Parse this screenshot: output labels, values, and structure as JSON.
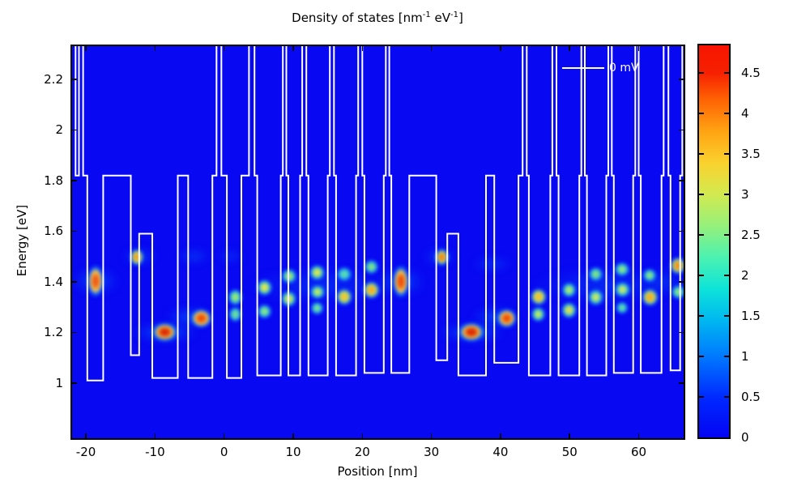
{
  "title": {
    "base": "Density of states [nm",
    "sup1": "-1",
    "mid": " eV",
    "sup2": "-1",
    "end": "]",
    "full": "Density of states [nm^-1 eV^-1]"
  },
  "legend": {
    "label": "0 mV",
    "line_color": "#ffffff"
  },
  "axes": {
    "x": {
      "label": "Position [nm]",
      "tick_labels": [
        "-20",
        "-10",
        "0",
        "10",
        "20",
        "30",
        "40",
        "50",
        "60"
      ],
      "tick_values": [
        -20,
        -10,
        0,
        10,
        20,
        30,
        40,
        50,
        60
      ]
    },
    "y": {
      "label": "Energy [eV]",
      "tick_labels": [
        "1",
        "1.2",
        "1.4",
        "1.6",
        "1.8",
        "2",
        "2.2"
      ],
      "tick_values": [
        1,
        1.2,
        1.4,
        1.6,
        1.8,
        2,
        2.2
      ]
    }
  },
  "colorbar": {
    "min": 0,
    "max": 4.84,
    "tick_labels": [
      "0",
      "0.5",
      "1",
      "1.5",
      "2",
      "2.5",
      "3",
      "3.5",
      "4",
      "4.5"
    ],
    "tick_values": [
      0,
      0.5,
      1,
      1.5,
      2,
      2.5,
      3,
      3.5,
      4,
      4.5
    ],
    "gradient": [
      [
        0,
        "#0404f2"
      ],
      [
        0.1,
        "#0028ff"
      ],
      [
        0.2,
        "#0074ff"
      ],
      [
        0.3,
        "#00b8f0"
      ],
      [
        0.38,
        "#0ee4d8"
      ],
      [
        0.46,
        "#4cf2b0"
      ],
      [
        0.54,
        "#96f07a"
      ],
      [
        0.62,
        "#d2ea50"
      ],
      [
        0.7,
        "#fad22e"
      ],
      [
        0.78,
        "#ffa413"
      ],
      [
        0.86,
        "#ff6404"
      ],
      [
        0.93,
        "#f62000"
      ],
      [
        1,
        "#f81400"
      ]
    ]
  },
  "colors": {
    "plot_bg": "#0808f2",
    "band_line": "#ffffff",
    "frame": "#000000"
  },
  "chart_data": {
    "type": "heatmap",
    "title": "Density of states [nm^-1 eV^-1]",
    "xlabel": "Position [nm]",
    "ylabel": "Energy [eV]",
    "xlim": [
      -22.0,
      66.5
    ],
    "ylim": [
      0.782,
      2.331
    ],
    "value_range": [
      0,
      4.84
    ],
    "series": [
      {
        "name": "0 mV",
        "role": "conduction-band-profile",
        "step_points": [
          [
            -22.0,
            2.36
          ],
          [
            -21.5,
            1.82
          ],
          [
            -21.0,
            2.36
          ],
          [
            -20.4,
            1.82
          ],
          [
            -19.8,
            1.01
          ],
          [
            -17.5,
            1.82
          ],
          [
            -13.5,
            1.11
          ],
          [
            -12.3,
            1.59
          ],
          [
            -10.4,
            1.02
          ],
          [
            -6.7,
            1.82
          ],
          [
            -5.2,
            1.02
          ],
          [
            -1.7,
            1.82
          ],
          [
            -1.1,
            2.36
          ],
          [
            -0.4,
            1.82
          ],
          [
            0.4,
            1.02
          ],
          [
            2.5,
            1.82
          ],
          [
            3.6,
            2.36
          ],
          [
            4.4,
            1.82
          ],
          [
            4.8,
            1.03
          ],
          [
            8.2,
            1.82
          ],
          [
            8.5,
            2.36
          ],
          [
            9.0,
            1.82
          ],
          [
            9.3,
            1.03
          ],
          [
            11.0,
            1.82
          ],
          [
            11.3,
            2.36
          ],
          [
            11.9,
            1.82
          ],
          [
            12.2,
            1.03
          ],
          [
            15.0,
            1.82
          ],
          [
            15.3,
            2.36
          ],
          [
            15.9,
            1.82
          ],
          [
            16.2,
            1.03
          ],
          [
            19.1,
            1.82
          ],
          [
            19.4,
            2.36
          ],
          [
            20.0,
            1.82
          ],
          [
            20.3,
            1.04
          ],
          [
            23.1,
            1.82
          ],
          [
            23.4,
            2.36
          ],
          [
            23.9,
            1.82
          ],
          [
            24.2,
            1.04
          ],
          [
            26.8,
            1.82
          ],
          [
            30.7,
            1.09
          ],
          [
            32.3,
            1.59
          ],
          [
            33.9,
            1.03
          ],
          [
            37.9,
            1.82
          ],
          [
            39.1,
            1.08
          ],
          [
            42.6,
            1.82
          ],
          [
            43.2,
            2.36
          ],
          [
            43.8,
            1.82
          ],
          [
            44.1,
            1.03
          ],
          [
            47.2,
            1.82
          ],
          [
            47.5,
            2.36
          ],
          [
            48.1,
            1.82
          ],
          [
            48.4,
            1.03
          ],
          [
            51.4,
            1.82
          ],
          [
            51.7,
            2.36
          ],
          [
            52.2,
            1.82
          ],
          [
            52.5,
            1.03
          ],
          [
            55.3,
            1.82
          ],
          [
            55.6,
            2.36
          ],
          [
            56.1,
            1.82
          ],
          [
            56.4,
            1.04
          ],
          [
            59.2,
            1.82
          ],
          [
            59.5,
            2.36
          ],
          [
            60.0,
            1.82
          ],
          [
            60.3,
            1.04
          ],
          [
            63.3,
            1.82
          ],
          [
            63.6,
            2.36
          ],
          [
            64.3,
            1.82
          ],
          [
            64.6,
            1.05
          ],
          [
            66.0,
            1.82
          ],
          [
            66.3,
            2.36
          ]
        ]
      }
    ],
    "states": [
      {
        "x": -18.6,
        "E": 1.403,
        "w": 2.7,
        "h": 0.15,
        "core": "#ef5a18",
        "mid": "#ffd24b"
      },
      {
        "x": -12.6,
        "E": 1.496,
        "w": 2.3,
        "h": 0.08,
        "core": "#f5a01e",
        "mid": "#c8e860"
      },
      {
        "x": -8.6,
        "E": 1.201,
        "w": 4.4,
        "h": 0.09,
        "core": "#dd2b06",
        "mid": "#ffc83c"
      },
      {
        "x": -3.3,
        "E": 1.256,
        "w": 3.6,
        "h": 0.088,
        "core": "#ee4f08",
        "mid": "#ffd24b"
      },
      {
        "x": 1.6,
        "E": 1.339,
        "w": 2.5,
        "h": 0.075,
        "core": "#9ce86e",
        "mid": "#3cd4cc"
      },
      {
        "x": 1.6,
        "E": 1.272,
        "w": 2.3,
        "h": 0.068,
        "core": "#74dc96",
        "mid": "#34ccd4"
      },
      {
        "x": 5.8,
        "E": 1.378,
        "w": 2.7,
        "h": 0.078,
        "core": "#e6e44b",
        "mid": "#55dcb4"
      },
      {
        "x": 5.8,
        "E": 1.282,
        "w": 2.5,
        "h": 0.068,
        "core": "#8ce682",
        "mid": "#34ccd4"
      },
      {
        "x": 9.4,
        "E": 1.421,
        "w": 2.5,
        "h": 0.07,
        "core": "#aae866",
        "mid": "#3cd4cc"
      },
      {
        "x": 9.4,
        "E": 1.333,
        "w": 2.7,
        "h": 0.075,
        "core": "#dce64b",
        "mid": "#48d8c0"
      },
      {
        "x": 13.5,
        "E": 1.436,
        "w": 2.7,
        "h": 0.075,
        "core": "#e0e44b",
        "mid": "#48d8c0"
      },
      {
        "x": 13.5,
        "E": 1.36,
        "w": 2.5,
        "h": 0.068,
        "core": "#c4e85a",
        "mid": "#3cd4cc"
      },
      {
        "x": 13.5,
        "E": 1.295,
        "w": 2.2,
        "h": 0.06,
        "core": "#7ce09a",
        "mid": "#30c8d8"
      },
      {
        "x": 17.4,
        "E": 1.43,
        "w": 2.5,
        "h": 0.068,
        "core": "#5fdcae",
        "mid": "#28c0e0"
      },
      {
        "x": 17.4,
        "E": 1.339,
        "w": 2.8,
        "h": 0.08,
        "core": "#f5c52d",
        "mid": "#a0e878"
      },
      {
        "x": 21.3,
        "E": 1.46,
        "w": 2.5,
        "h": 0.068,
        "core": "#84e282",
        "mid": "#30c8d8"
      },
      {
        "x": 21.3,
        "E": 1.368,
        "w": 2.9,
        "h": 0.082,
        "core": "#f9ad22",
        "mid": "#b4e86e"
      },
      {
        "x": 25.6,
        "E": 1.401,
        "w": 2.9,
        "h": 0.148,
        "core": "#ef4d0a",
        "mid": "#ffd24b"
      },
      {
        "x": 31.5,
        "E": 1.496,
        "w": 2.5,
        "h": 0.08,
        "core": "#f58414",
        "mid": "#cce85f"
      },
      {
        "x": 35.8,
        "E": 1.201,
        "w": 4.4,
        "h": 0.09,
        "core": "#dd2b06",
        "mid": "#ffc83c"
      },
      {
        "x": 40.9,
        "E": 1.256,
        "w": 3.4,
        "h": 0.088,
        "core": "#ee4f08",
        "mid": "#ffd24b"
      },
      {
        "x": 45.5,
        "E": 1.339,
        "w": 2.8,
        "h": 0.08,
        "core": "#f5c02d",
        "mid": "#b4e86e"
      },
      {
        "x": 45.5,
        "E": 1.272,
        "w": 2.5,
        "h": 0.068,
        "core": "#c4e85a",
        "mid": "#3cd4cc"
      },
      {
        "x": 49.9,
        "E": 1.368,
        "w": 2.5,
        "h": 0.072,
        "core": "#b4e866",
        "mid": "#3cd4cc"
      },
      {
        "x": 49.9,
        "E": 1.288,
        "w": 2.7,
        "h": 0.075,
        "core": "#e4de4b",
        "mid": "#50d8bc"
      },
      {
        "x": 53.8,
        "E": 1.43,
        "w": 2.5,
        "h": 0.068,
        "core": "#84e282",
        "mid": "#30c8d8"
      },
      {
        "x": 53.8,
        "E": 1.339,
        "w": 2.7,
        "h": 0.075,
        "core": "#cce85f",
        "mid": "#3cd4cc"
      },
      {
        "x": 57.6,
        "E": 1.45,
        "w": 2.5,
        "h": 0.068,
        "core": "#8ee67e",
        "mid": "#30c8d8"
      },
      {
        "x": 57.6,
        "E": 1.368,
        "w": 2.7,
        "h": 0.073,
        "core": "#cce85f",
        "mid": "#3cd4cc"
      },
      {
        "x": 57.6,
        "E": 1.298,
        "w": 2.1,
        "h": 0.058,
        "core": "#6adca4",
        "mid": "#28c0e0"
      },
      {
        "x": 61.6,
        "E": 1.339,
        "w": 2.9,
        "h": 0.082,
        "core": "#f5ad22",
        "mid": "#b4e86e"
      },
      {
        "x": 61.6,
        "E": 1.425,
        "w": 2.3,
        "h": 0.062,
        "core": "#8ee67e",
        "mid": "#30c8d8"
      },
      {
        "x": 65.7,
        "E": 1.464,
        "w": 2.8,
        "h": 0.082,
        "core": "#f58c1a",
        "mid": "#c0e862"
      },
      {
        "x": 65.7,
        "E": 1.36,
        "w": 2.5,
        "h": 0.068,
        "core": "#8ee67e",
        "mid": "#30c8d8"
      }
    ],
    "haloes": [
      {
        "x": -18.6,
        "E": 1.403,
        "w": 7.0,
        "h": 0.11,
        "a": 0.35
      },
      {
        "x": -12.2,
        "E": 1.5,
        "w": 5.0,
        "h": 0.07,
        "a": 0.3
      },
      {
        "x": -8.6,
        "E": 1.2,
        "w": 9.5,
        "h": 0.075,
        "a": 0.45
      },
      {
        "x": -5.0,
        "E": 1.26,
        "w": 7.0,
        "h": 0.08,
        "a": 0.35
      },
      {
        "x": -4.4,
        "E": 1.5,
        "w": 5.0,
        "h": 0.06,
        "a": 0.28
      },
      {
        "x": 1.0,
        "E": 1.5,
        "w": 4.0,
        "h": 0.055,
        "a": 0.22
      },
      {
        "x": 14.0,
        "E": 1.385,
        "w": 22.0,
        "h": 0.15,
        "a": 0.18
      },
      {
        "x": 25.6,
        "E": 1.4,
        "w": 7.0,
        "h": 0.12,
        "a": 0.35
      },
      {
        "x": 31.2,
        "E": 1.5,
        "w": 5.0,
        "h": 0.07,
        "a": 0.3
      },
      {
        "x": 35.8,
        "E": 1.2,
        "w": 9.5,
        "h": 0.075,
        "a": 0.45
      },
      {
        "x": 39.3,
        "E": 1.26,
        "w": 7.0,
        "h": 0.08,
        "a": 0.35
      },
      {
        "x": 38.8,
        "E": 1.47,
        "w": 6.0,
        "h": 0.06,
        "a": 0.26
      },
      {
        "x": 55.0,
        "E": 1.385,
        "w": 22.0,
        "h": 0.15,
        "a": 0.18
      },
      {
        "x": 63.5,
        "E": 1.4,
        "w": 8.0,
        "h": 0.12,
        "a": 0.18
      }
    ]
  }
}
